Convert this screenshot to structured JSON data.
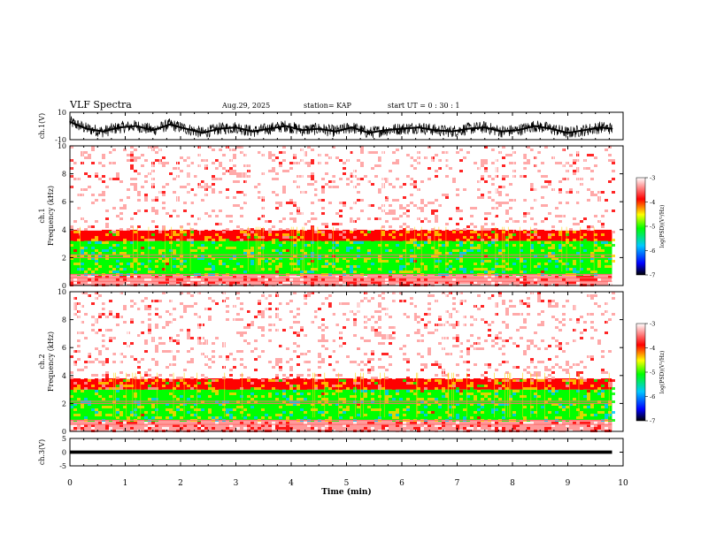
{
  "header": {
    "title": "VLF Spectra",
    "date": "Aug.29, 2025",
    "station": "station= KAP",
    "start": "start  UT =   0  : 30 : 1"
  },
  "colors": {
    "axis": "#000000",
    "background": "#ffffff",
    "colormap": [
      "#000000",
      "#0000ff",
      "#00c8ff",
      "#00ff00",
      "#ffff00",
      "#ff0000",
      "#ffffff"
    ]
  },
  "chart_data": [
    {
      "type": "line",
      "id": "ch1-waveform",
      "ylabel": "ch.1(V)",
      "ylim": [
        -10,
        10
      ],
      "yticks": [
        "10",
        "-10"
      ],
      "xlim": [
        0,
        10
      ],
      "x": [
        0.0,
        0.3,
        0.6,
        0.9,
        1.2,
        1.5,
        1.8,
        2.1,
        2.4,
        2.7,
        3.0,
        3.3,
        3.6,
        3.9,
        4.2,
        4.5,
        4.8,
        5.1,
        5.4,
        5.7,
        6.0,
        6.3,
        6.6,
        6.9,
        7.2,
        7.5,
        7.8,
        8.1,
        8.4,
        8.7,
        9.0,
        9.3,
        9.6,
        9.8
      ],
      "values": [
        3,
        -2,
        -4,
        -1,
        0,
        -3,
        1,
        -2,
        -5,
        -2,
        -1,
        -4,
        -2,
        0,
        -3,
        -2,
        -4,
        -1,
        -5,
        -3,
        -2,
        -1,
        -3,
        -4,
        -2,
        -1,
        -4,
        -3,
        0,
        -2,
        -5,
        -3,
        -1,
        -2
      ],
      "line_color": "#000000"
    },
    {
      "type": "heatmap",
      "id": "ch1-spectrogram",
      "ylabel": "ch.1",
      "ylabel2": "Frequency  (kHz)",
      "ylim": [
        0,
        10
      ],
      "yticks": [
        "0",
        "2",
        "4",
        "6",
        "8",
        "10"
      ],
      "xlim": [
        0,
        10
      ],
      "data_end_min": 9.8,
      "colorbar": {
        "label": "log(PSD)(V²/Hz)",
        "range": [
          -7,
          -3
        ],
        "ticks": [
          "-3",
          "-4",
          "-5",
          "-6",
          "-7"
        ]
      },
      "bands_kHz": [
        {
          "from": 0.0,
          "to": 0.8,
          "level": -3.8
        },
        {
          "from": 0.8,
          "to": 3.2,
          "level": -4.9
        },
        {
          "from": 3.2,
          "to": 4.0,
          "level": -4.3
        },
        {
          "from": 4.0,
          "to": 10.0,
          "level": -3.4
        }
      ],
      "horizontal_lines_kHz": [
        0.3,
        0.55,
        0.8,
        2.0,
        2.2
      ]
    },
    {
      "type": "heatmap",
      "id": "ch2-spectrogram",
      "ylabel": "ch.2",
      "ylabel2": "Frequency  (kHz)",
      "ylim": [
        0,
        10
      ],
      "yticks": [
        "0",
        "2",
        "4",
        "6",
        "8",
        "10"
      ],
      "xlim": [
        0,
        10
      ],
      "data_end_min": 9.8,
      "colorbar": {
        "label": "log(PSD)(V²/Hz)",
        "range": [
          -7,
          -3
        ],
        "ticks": [
          "-3",
          "-4",
          "-5",
          "-6",
          "-7"
        ]
      },
      "bands_kHz": [
        {
          "from": 0.0,
          "to": 0.8,
          "level": -3.8
        },
        {
          "from": 0.8,
          "to": 3.0,
          "level": -4.9
        },
        {
          "from": 3.0,
          "to": 3.8,
          "level": -4.3
        },
        {
          "from": 3.8,
          "to": 10.0,
          "level": -3.4
        }
      ],
      "horizontal_lines_kHz": [
        0.5,
        0.8,
        2.0,
        2.15
      ]
    },
    {
      "type": "line",
      "id": "ch3-waveform",
      "ylabel": "ch.3(V)",
      "ylim": [
        -5,
        5
      ],
      "yticks": [
        "5",
        "0",
        "-5"
      ],
      "xlim": [
        0,
        10
      ],
      "band_values": [
        -0.6,
        0.6
      ],
      "data_end_min": 9.8,
      "line_color": "#000000"
    }
  ],
  "xaxis": {
    "label": "Time  (min)",
    "ticks": [
      "0",
      "1",
      "2",
      "3",
      "4",
      "5",
      "6",
      "7",
      "8",
      "9",
      "10"
    ],
    "range": [
      0,
      10
    ]
  }
}
